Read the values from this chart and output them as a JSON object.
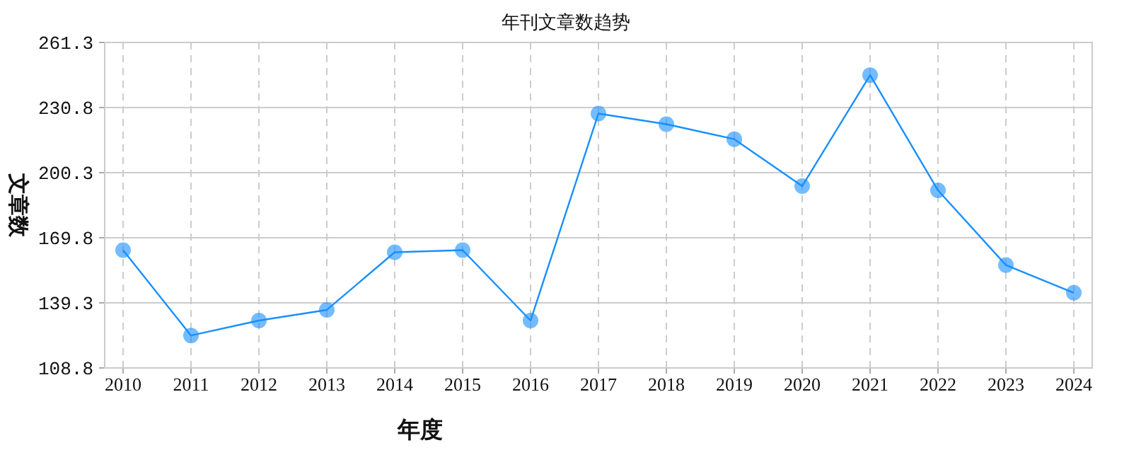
{
  "chart_data": {
    "type": "line",
    "title": "年刊文章数趋势",
    "xlabel": "年度",
    "ylabel": "文章数",
    "categories": [
      "2010",
      "2011",
      "2012",
      "2013",
      "2014",
      "2015",
      "2016",
      "2017",
      "2018",
      "2019",
      "2020",
      "2021",
      "2022",
      "2023",
      "2024"
    ],
    "series": [
      {
        "color": "#1890ff",
        "values": [
          164,
          124,
          131,
          136,
          163,
          164,
          131,
          228,
          223,
          216,
          194,
          246,
          192,
          157,
          144
        ]
      }
    ],
    "ylim": [
      108.8,
      261.3
    ],
    "yticks": [
      108.8,
      139.3,
      169.8,
      200.3,
      230.8,
      261.3
    ],
    "grid": true,
    "marker": "circle"
  }
}
